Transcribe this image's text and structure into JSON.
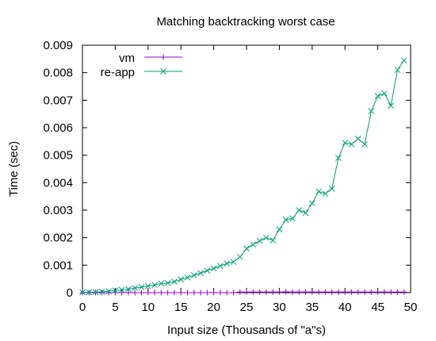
{
  "chart_data": {
    "type": "line",
    "title": "Matching backtracking worst case",
    "xlabel": "Input size (Thousands of \"a\"s)",
    "ylabel": "Time (sec)",
    "xlim": [
      0,
      50
    ],
    "ylim": [
      0,
      0.009
    ],
    "xticks": [
      "0",
      "5",
      "10",
      "15",
      "20",
      "25",
      "30",
      "35",
      "40",
      "45",
      "50"
    ],
    "yticks": [
      "0",
      "0.001",
      "0.002",
      "0.003",
      "0.004",
      "0.005",
      "0.006",
      "0.007",
      "0.008",
      "0.009"
    ],
    "grid": false,
    "legend_position": "top-left",
    "x": [
      0,
      1,
      2,
      3,
      4,
      5,
      6,
      7,
      8,
      9,
      10,
      11,
      12,
      13,
      14,
      15,
      16,
      17,
      18,
      19,
      20,
      21,
      22,
      23,
      24,
      25,
      26,
      27,
      28,
      29,
      30,
      31,
      32,
      33,
      34,
      35,
      36,
      37,
      38,
      39,
      40,
      41,
      42,
      43,
      44,
      45,
      46,
      47,
      48,
      49
    ],
    "series": [
      {
        "name": "vm",
        "color": "#9400d3",
        "marker": "plus",
        "values": [
          0,
          0,
          0,
          0,
          0,
          0,
          0,
          0,
          0,
          0,
          0,
          0,
          0,
          0,
          0,
          0,
          0,
          0,
          0,
          0,
          0,
          0,
          0,
          0,
          2e-05,
          2e-05,
          2e-05,
          2e-05,
          2e-05,
          2e-05,
          2e-05,
          3e-05,
          2e-05,
          2e-05,
          2e-05,
          2e-05,
          2e-05,
          2e-05,
          2e-05,
          2e-05,
          2e-05,
          2e-05,
          2e-05,
          2e-05,
          2e-05,
          2e-05,
          2e-05,
          2e-05,
          2e-05,
          2e-05
        ]
      },
      {
        "name": "re-app",
        "color": "#009e73",
        "marker": "cross",
        "values": [
          1e-05,
          1e-05,
          2e-05,
          3e-05,
          5e-05,
          8e-05,
          0.0001,
          0.00013,
          0.00017,
          0.0002,
          0.00024,
          0.00028,
          0.00033,
          0.00035,
          0.0004,
          0.00048,
          0.00055,
          0.00063,
          0.00071,
          0.0008,
          0.00088,
          0.00097,
          0.00106,
          0.00112,
          0.0013,
          0.0016,
          0.00175,
          0.00188,
          0.002,
          0.0019,
          0.0023,
          0.00265,
          0.0027,
          0.003,
          0.0029,
          0.00325,
          0.00368,
          0.0036,
          0.00378,
          0.0049,
          0.00545,
          0.0054,
          0.0056,
          0.0054,
          0.0066,
          0.00715,
          0.00725,
          0.0068,
          0.0081,
          0.00845
        ]
      }
    ]
  }
}
